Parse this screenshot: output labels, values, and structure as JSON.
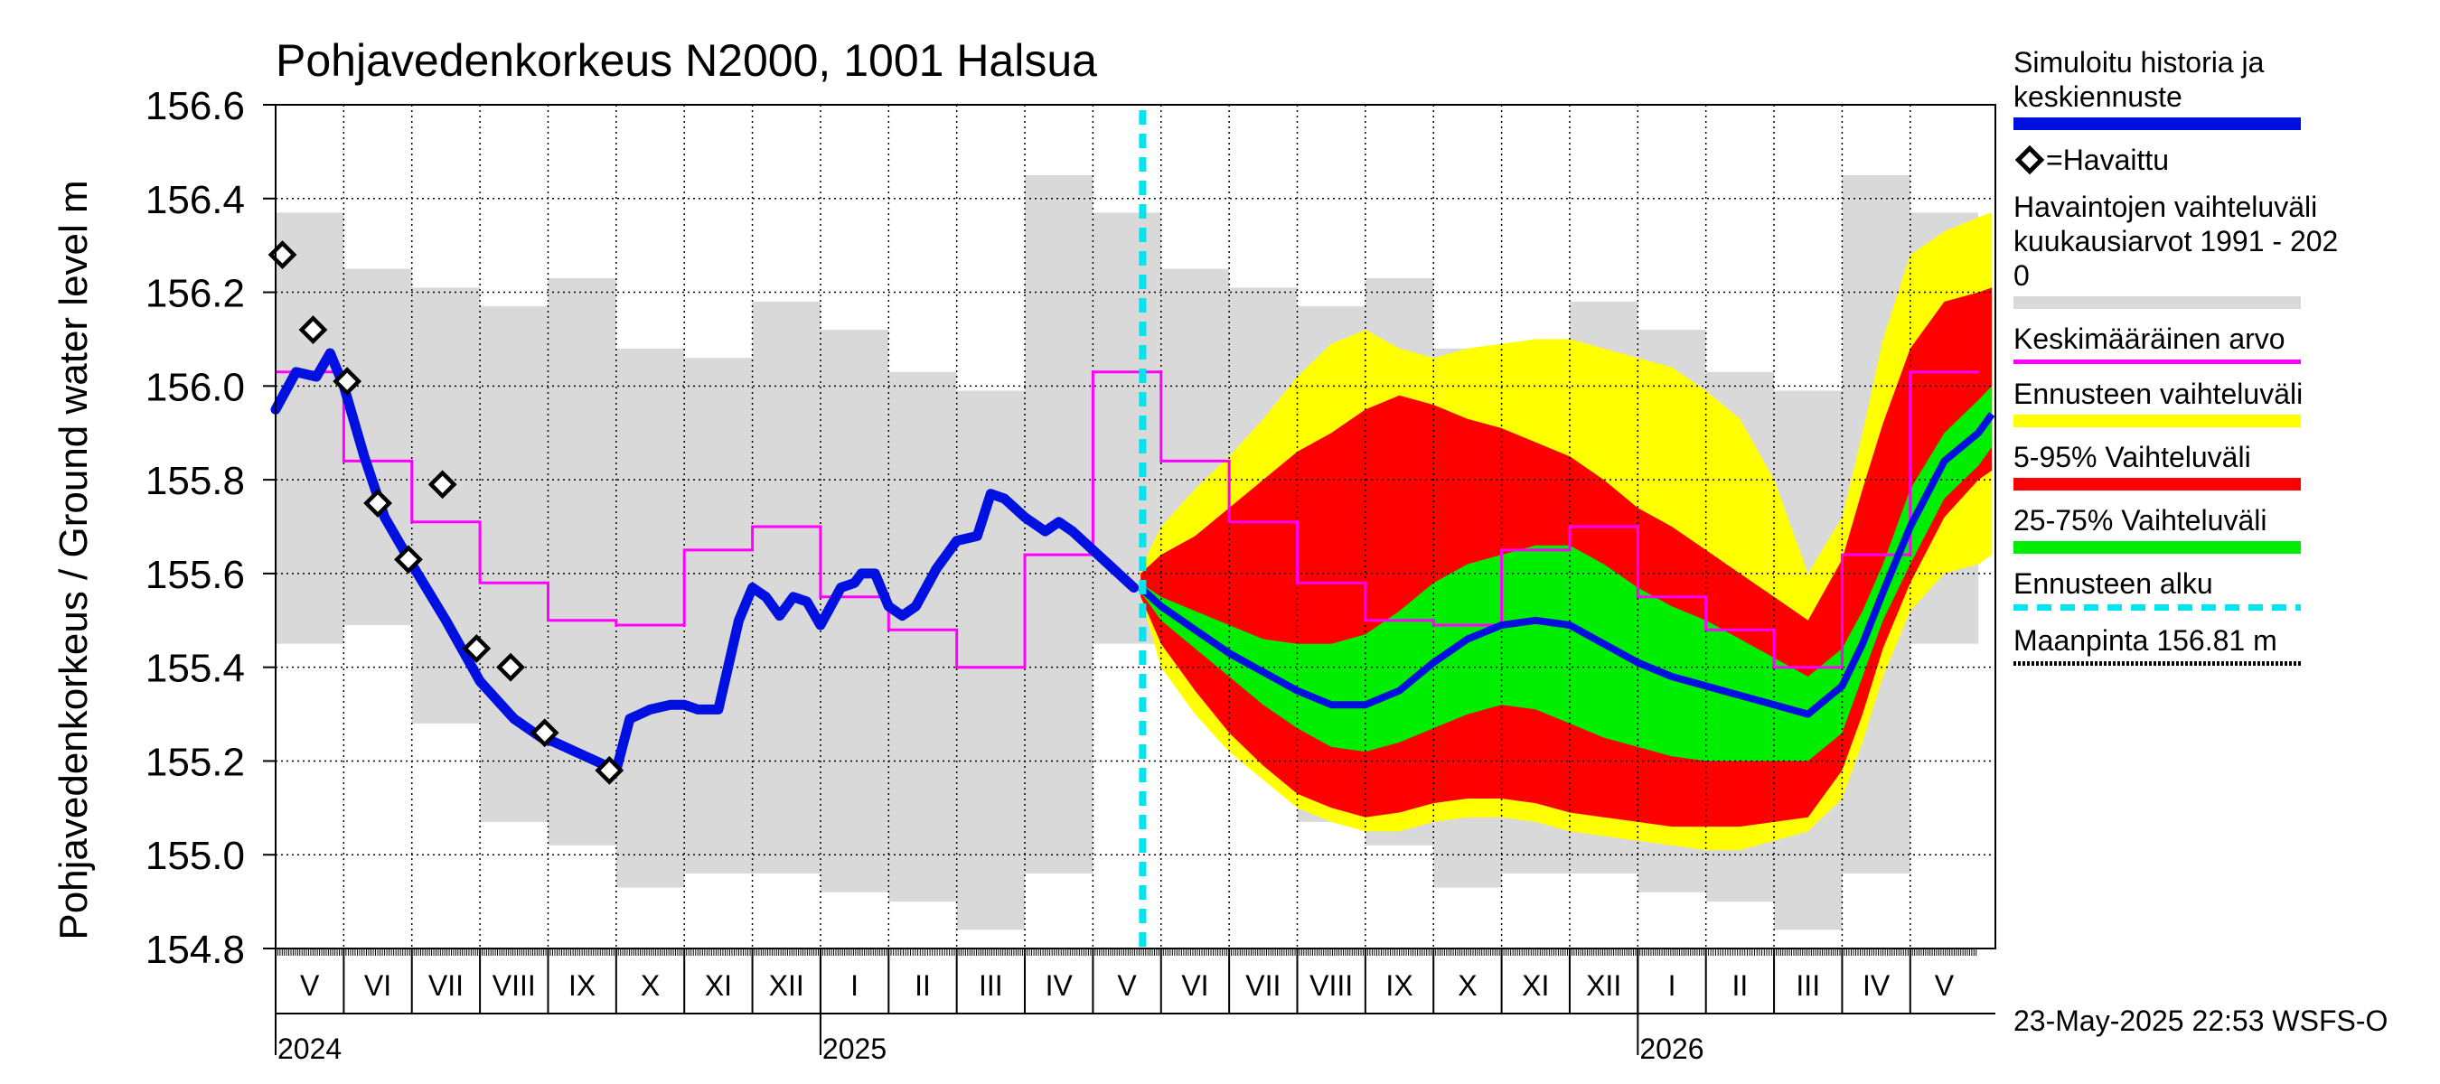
{
  "colors": {
    "history": "#0010e0",
    "observed_marker": "#000000",
    "obs_range": "#d9d9d9",
    "mean": "#ff00ff",
    "forecast_range": "#ffff00",
    "p5_95": "#ff0000",
    "p25_75": "#00ee00",
    "forecast_start": "#00e5ee",
    "ground": "#000000"
  },
  "legend": {
    "history": "Simuloitu historia ja\nkeskiennuste",
    "observed": "=Havaittu",
    "obs_range": "Havaintojen vaihteluväli\n kuukausiarvot 1991 - 202\n0",
    "mean": "Keskimääräinen arvo",
    "forecast_range": "Ennusteen vaihteluväli",
    "p5_95": "5-95% Vaihteluväli",
    "p25_75": "25-75% Vaihteluväli",
    "forecast_start": "Ennusteen alku",
    "ground": "Maanpinta 156.81 m"
  },
  "footer": "23-May-2025 22:53 WSFS-O",
  "chart_data": {
    "type": "line",
    "title": "Pohjavedenkorkeus N2000, 1001 Halsua",
    "ylabel": "Pohjavedenkorkeus / Ground water level   m",
    "ylim": [
      154.8,
      156.6
    ],
    "yticks": [
      154.8,
      155.0,
      155.2,
      155.4,
      155.6,
      155.8,
      156.0,
      156.2,
      156.4,
      156.6
    ],
    "ytick_labels": [
      "154.8",
      "155.0",
      "155.2",
      "155.4",
      "155.6",
      "155.8",
      "156.0",
      "156.2",
      "156.4",
      "156.6"
    ],
    "x_unit": "months from 2024-05-01",
    "xlim": [
      0,
      25.25
    ],
    "grid": true,
    "months": [
      {
        "label": "V",
        "x": 0,
        "days": 31
      },
      {
        "label": "VI",
        "x": 1,
        "days": 30
      },
      {
        "label": "VII",
        "x": 2,
        "days": 31
      },
      {
        "label": "VIII",
        "x": 3,
        "days": 31
      },
      {
        "label": "IX",
        "x": 4,
        "days": 30
      },
      {
        "label": "X",
        "x": 5,
        "days": 31
      },
      {
        "label": "XI",
        "x": 6,
        "days": 30
      },
      {
        "label": "XII",
        "x": 7,
        "days": 31
      },
      {
        "label": "I",
        "x": 8,
        "days": 31
      },
      {
        "label": "II",
        "x": 9,
        "days": 28
      },
      {
        "label": "III",
        "x": 10,
        "days": 31
      },
      {
        "label": "IV",
        "x": 11,
        "days": 30
      },
      {
        "label": "V",
        "x": 12,
        "days": 31
      },
      {
        "label": "VI",
        "x": 13,
        "days": 30
      },
      {
        "label": "VII",
        "x": 14,
        "days": 31
      },
      {
        "label": "VIII",
        "x": 15,
        "days": 31
      },
      {
        "label": "IX",
        "x": 16,
        "days": 30
      },
      {
        "label": "X",
        "x": 17,
        "days": 31
      },
      {
        "label": "XI",
        "x": 18,
        "days": 30
      },
      {
        "label": "XII",
        "x": 19,
        "days": 31
      },
      {
        "label": "I",
        "x": 20,
        "days": 31
      },
      {
        "label": "II",
        "x": 21,
        "days": 28
      },
      {
        "label": "III",
        "x": 22,
        "days": 31
      },
      {
        "label": "IV",
        "x": 23,
        "days": 30
      },
      {
        "label": "V",
        "x": 24,
        "days": 31
      }
    ],
    "years": [
      {
        "label": "2024",
        "x": 0
      },
      {
        "label": "2025",
        "x": 8
      },
      {
        "label": "2026",
        "x": 20
      }
    ],
    "obs_range_monthly": [
      [
        155.45,
        156.37
      ],
      [
        155.49,
        156.25
      ],
      [
        155.28,
        156.21
      ],
      [
        155.07,
        156.17
      ],
      [
        155.02,
        156.23
      ],
      [
        154.93,
        156.08
      ],
      [
        154.96,
        156.06
      ],
      [
        154.96,
        156.18
      ],
      [
        154.92,
        156.12
      ],
      [
        154.9,
        156.03
      ],
      [
        154.84,
        155.99
      ],
      [
        154.96,
        156.45
      ],
      [
        155.45,
        156.37
      ],
      [
        155.49,
        156.25
      ],
      [
        155.28,
        156.21
      ],
      [
        155.07,
        156.17
      ],
      [
        155.02,
        156.23
      ],
      [
        154.93,
        156.08
      ],
      [
        154.96,
        156.06
      ],
      [
        154.96,
        156.18
      ],
      [
        154.92,
        156.12
      ],
      [
        154.9,
        156.03
      ],
      [
        154.84,
        155.99
      ],
      [
        154.96,
        156.45
      ],
      [
        155.45,
        156.37
      ]
    ],
    "mean_monthly": [
      156.03,
      155.84,
      155.71,
      155.58,
      155.5,
      155.49,
      155.65,
      155.7,
      155.55,
      155.48,
      155.4,
      155.64,
      156.03,
      155.84,
      155.71,
      155.58,
      155.5,
      155.49,
      155.65,
      155.7,
      155.55,
      155.48,
      155.4,
      155.64,
      156.03
    ],
    "observed": [
      {
        "x": 0.1,
        "y": 156.28
      },
      {
        "x": 0.55,
        "y": 156.12
      },
      {
        "x": 1.05,
        "y": 156.01
      },
      {
        "x": 1.5,
        "y": 155.75
      },
      {
        "x": 1.95,
        "y": 155.63
      },
      {
        "x": 2.45,
        "y": 155.79
      },
      {
        "x": 2.95,
        "y": 155.44
      },
      {
        "x": 3.45,
        "y": 155.4
      },
      {
        "x": 3.95,
        "y": 155.26
      },
      {
        "x": 4.9,
        "y": 155.18
      }
    ],
    "history": {
      "x": [
        0,
        0.3,
        0.6,
        0.8,
        1.0,
        1.3,
        1.6,
        2.0,
        2.5,
        3.0,
        3.5,
        3.9,
        4.1,
        4.4,
        4.7,
        5.0,
        5.2,
        5.35,
        5.5,
        5.8,
        6.0,
        6.2,
        6.5,
        6.8,
        7.0,
        7.2,
        7.4,
        7.6,
        7.8,
        8.0,
        8.3,
        8.5,
        8.6,
        8.8,
        9.0,
        9.2,
        9.4,
        9.7,
        10.0,
        10.3,
        10.5,
        10.7,
        11.0,
        11.3,
        11.5,
        11.7,
        12.0,
        12.3,
        12.6
      ],
      "y": [
        155.95,
        156.03,
        156.02,
        156.07,
        156.0,
        155.85,
        155.72,
        155.62,
        155.5,
        155.37,
        155.29,
        155.25,
        155.24,
        155.22,
        155.2,
        155.18,
        155.29,
        155.3,
        155.31,
        155.32,
        155.32,
        155.31,
        155.31,
        155.5,
        155.57,
        155.55,
        155.51,
        155.55,
        155.54,
        155.49,
        155.57,
        155.58,
        155.6,
        155.6,
        155.53,
        155.51,
        155.53,
        155.61,
        155.67,
        155.68,
        155.77,
        155.76,
        155.72,
        155.69,
        155.71,
        155.69,
        155.65,
        155.61,
        155.57
      ]
    },
    "forecast_start_x": 12.73,
    "ground_level": 156.81,
    "forecast": {
      "x": [
        12.7,
        13.0,
        13.5,
        14.0,
        14.5,
        15.0,
        15.5,
        16.0,
        16.5,
        17.0,
        17.5,
        18.0,
        18.5,
        19.0,
        19.5,
        20.0,
        20.5,
        21.0,
        21.5,
        22.0,
        22.5,
        23.0,
        23.3,
        23.6,
        24.0,
        24.5,
        25.0,
        25.2
      ],
      "median": [
        155.57,
        155.53,
        155.48,
        155.43,
        155.39,
        155.35,
        155.32,
        155.32,
        155.35,
        155.41,
        155.46,
        155.49,
        155.5,
        155.49,
        155.45,
        155.41,
        155.38,
        155.36,
        155.34,
        155.32,
        155.3,
        155.36,
        155.45,
        155.56,
        155.7,
        155.84,
        155.9,
        155.94
      ],
      "p25": [
        155.56,
        155.5,
        155.44,
        155.38,
        155.32,
        155.27,
        155.23,
        155.22,
        155.24,
        155.27,
        155.3,
        155.32,
        155.31,
        155.28,
        155.25,
        155.23,
        155.21,
        155.2,
        155.2,
        155.2,
        155.2,
        155.26,
        155.38,
        155.5,
        155.62,
        155.76,
        155.83,
        155.87
      ],
      "p75": [
        155.58,
        155.55,
        155.52,
        155.49,
        155.46,
        155.45,
        155.45,
        155.47,
        155.52,
        155.58,
        155.62,
        155.64,
        155.66,
        155.66,
        155.62,
        155.57,
        155.53,
        155.5,
        155.46,
        155.42,
        155.38,
        155.44,
        155.52,
        155.62,
        155.78,
        155.9,
        155.97,
        156.0
      ],
      "p5": [
        155.55,
        155.45,
        155.35,
        155.26,
        155.19,
        155.13,
        155.1,
        155.08,
        155.09,
        155.11,
        155.12,
        155.12,
        155.11,
        155.09,
        155.08,
        155.07,
        155.06,
        155.06,
        155.06,
        155.07,
        155.08,
        155.18,
        155.3,
        155.44,
        155.58,
        155.72,
        155.8,
        155.82
      ],
      "p95": [
        155.6,
        155.64,
        155.68,
        155.74,
        155.8,
        155.86,
        155.9,
        155.95,
        155.98,
        155.96,
        155.93,
        155.91,
        155.88,
        155.85,
        155.8,
        155.74,
        155.7,
        155.65,
        155.6,
        155.55,
        155.5,
        155.63,
        155.78,
        155.92,
        156.08,
        156.18,
        156.2,
        156.21
      ],
      "min": [
        155.55,
        155.4,
        155.3,
        155.22,
        155.16,
        155.1,
        155.07,
        155.05,
        155.05,
        155.07,
        155.08,
        155.08,
        155.07,
        155.05,
        155.04,
        155.03,
        155.02,
        155.01,
        155.01,
        155.03,
        155.05,
        155.12,
        155.24,
        155.38,
        155.52,
        155.6,
        155.62,
        155.64
      ],
      "max": [
        155.61,
        155.7,
        155.78,
        155.85,
        155.93,
        156.02,
        156.09,
        156.12,
        156.08,
        156.06,
        156.08,
        156.09,
        156.1,
        156.1,
        156.08,
        156.06,
        156.04,
        155.99,
        155.93,
        155.8,
        155.6,
        155.72,
        155.9,
        156.1,
        156.28,
        156.33,
        156.36,
        156.37
      ]
    }
  }
}
